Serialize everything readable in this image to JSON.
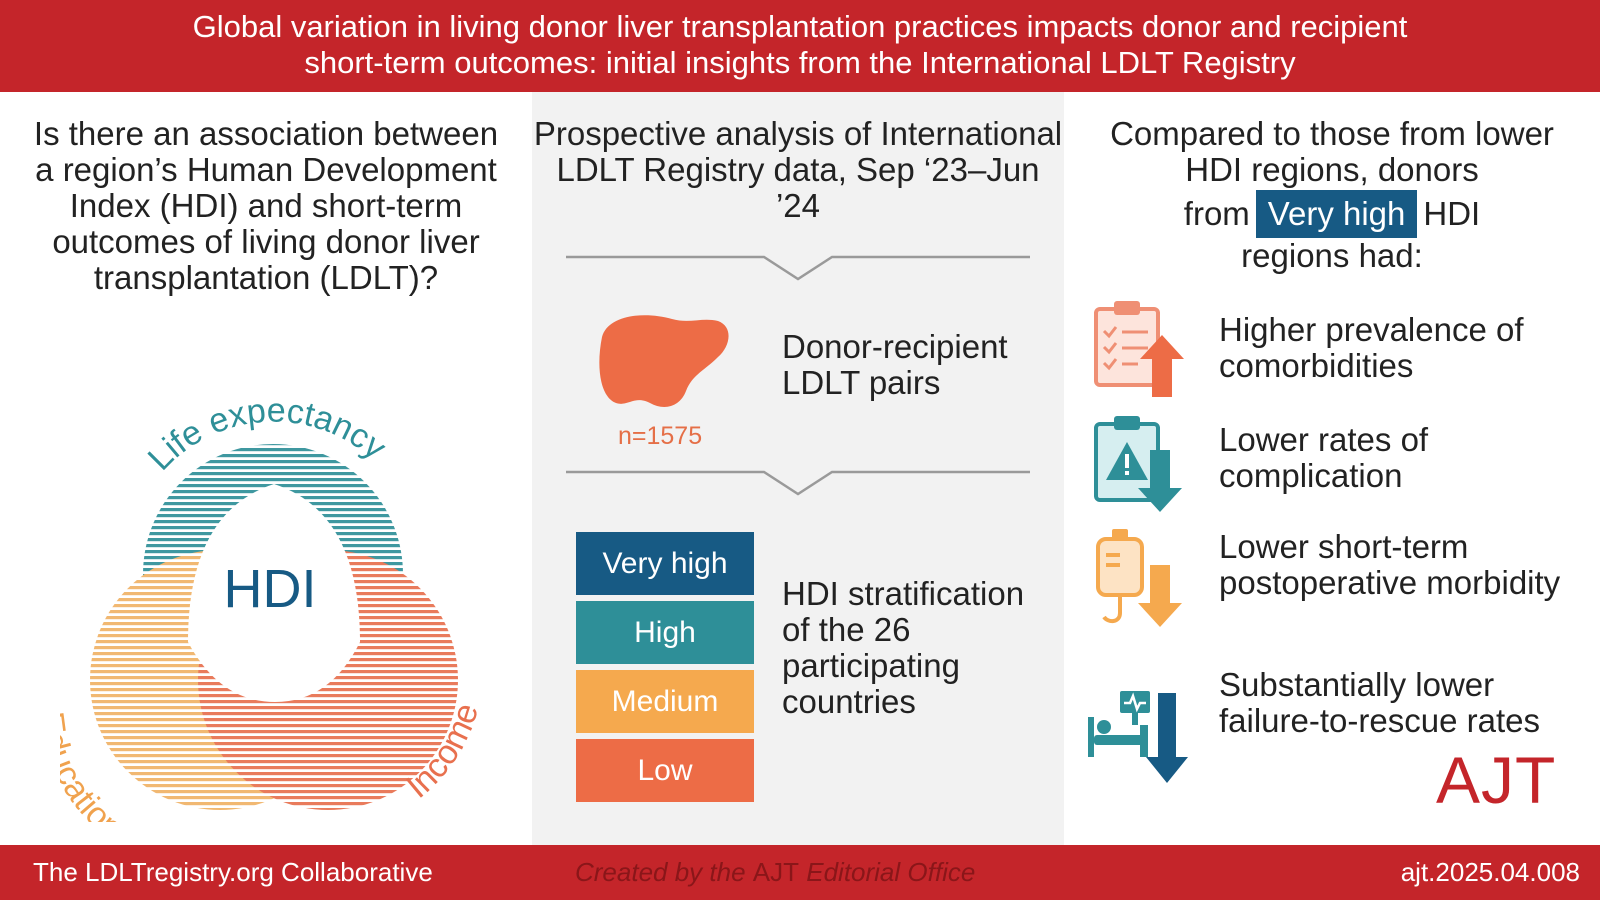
{
  "header": {
    "line1": "Global variation in living donor liver transplantation practices impacts donor and recipient",
    "line2": "short-term outcomes: initial insights from the International LDLT Registry"
  },
  "left": {
    "question": "Is there an association between a region’s Human Development Index (HDI) and short-term outcomes of living donor liver transplantation (LDLT)?",
    "venn": {
      "top_label": "Life expectancy",
      "left_label": "Education",
      "right_label": "Income",
      "center_label": "HDI",
      "colors": {
        "teal": "#2e8f98",
        "yellow": "#f0b266",
        "coral": "#e8704e",
        "center": "#175a84"
      }
    }
  },
  "middle": {
    "title": "Prospective analysis of International LDLT Registry data, Sep ‘23–Jun ’24",
    "liver_n": "n=1575",
    "pairs_label": "Donor-recipient LDLT pairs",
    "hdi_levels": [
      {
        "label": "Very high",
        "color": "#175a84"
      },
      {
        "label": "High",
        "color": "#2e8f98"
      },
      {
        "label": "Medium",
        "color": "#f5a94e"
      },
      {
        "label": "Low",
        "color": "#ed6c46"
      }
    ],
    "hdi_text": "HDI stratification of the 26 participating countries"
  },
  "right": {
    "title_line1": "Compared to those from lower HDI regions, donors",
    "title_from": "from",
    "title_badge": "Very high",
    "title_hdi": "HDI",
    "title_line3": "regions had:",
    "outcomes": [
      {
        "text": "Higher prevalence of comorbidities",
        "icon": "clipboard-checklist-up-arrow-icon"
      },
      {
        "text": "Lower rates of complication",
        "icon": "clipboard-warning-down-arrow-icon"
      },
      {
        "text": "Lower short-term postoperative morbidity",
        "icon": "iv-bag-down-arrow-icon"
      },
      {
        "text": "Substantially lower failure-to-rescue rates",
        "icon": "hospital-bed-monitor-down-arrow-icon"
      }
    ],
    "logo": "AJT"
  },
  "footer": {
    "left": "The LDLTregistry.org Collaborative",
    "center_pre": "Created by the ",
    "center_brand": "AJT",
    "center_post": " Editorial Office",
    "right": "ajt.2025.04.008"
  }
}
